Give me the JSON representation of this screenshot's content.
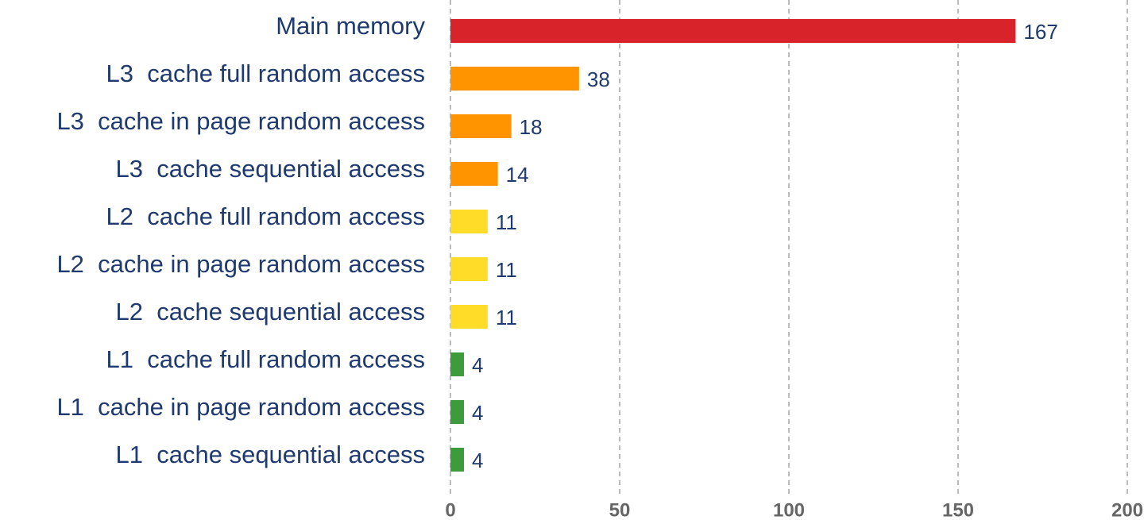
{
  "chart_data": {
    "type": "bar",
    "orientation": "horizontal",
    "categories": [
      "Main memory",
      "L3  cache full random access",
      "L3  cache in page random access",
      "L3  cache sequential access",
      "L2  cache full random access",
      "L2  cache in page random access",
      "L2  cache sequential access",
      "L1  cache full random access",
      "L1  cache in page random access",
      "L1  cache sequential access"
    ],
    "values": [
      167,
      38,
      18,
      14,
      11,
      11,
      11,
      4,
      4,
      4
    ],
    "colors": [
      "#d8232a",
      "#ff9300",
      "#ff9300",
      "#ff9300",
      "#ffdc28",
      "#ffdc28",
      "#ffdc28",
      "#3c9c3c",
      "#3c9c3c",
      "#3c9c3c"
    ],
    "xlim": [
      0,
      200
    ],
    "xticks": [
      0,
      50,
      100,
      150,
      200
    ],
    "grid": true
  }
}
